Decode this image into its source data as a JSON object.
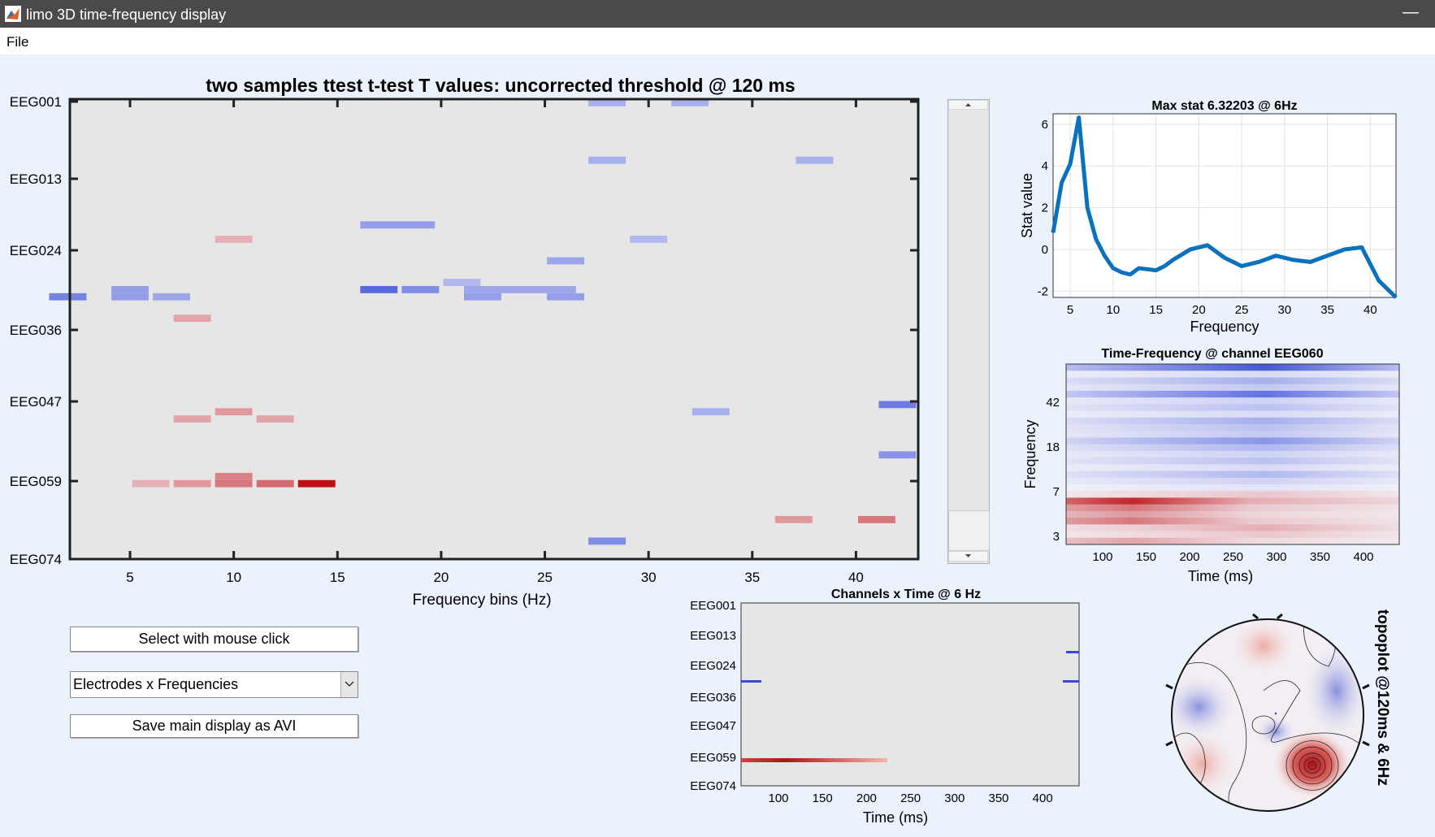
{
  "window": {
    "title": "limo 3D time-frequency display"
  },
  "menu": {
    "file": "File"
  },
  "main_plot": {
    "title": "two samples ttest t-test T values: uncorrected threshold @ 120 ms",
    "xlabel": "Frequency bins (Hz)",
    "y_ticks": [
      "EEG001",
      "EEG013",
      "EEG024",
      "EEG036",
      "EEG047",
      "EEG059",
      "EEG074"
    ],
    "x_ticks": [
      "5",
      "10",
      "15",
      "20",
      "25",
      "30",
      "35",
      "40"
    ]
  },
  "controls": {
    "select_button": "Select with mouse click",
    "dropdown_value": "Electrodes x Frequencies",
    "save_button": "Save main display as AVI"
  },
  "max_stat_plot": {
    "title": "Max stat 6.32203 @ 6Hz",
    "xlabel": "Frequency",
    "ylabel": "Stat value"
  },
  "tf_plot": {
    "title": "Time-Frequency @ channel EEG060",
    "xlabel": "Time (ms)",
    "ylabel": "Frequency",
    "y_ticks": [
      "42",
      "18",
      "7",
      "3"
    ],
    "x_ticks": [
      "100",
      "150",
      "200",
      "250",
      "300",
      "350",
      "400"
    ]
  },
  "channels_time_plot": {
    "title": "Channels x Time @ 6 Hz",
    "xlabel": "Time (ms)",
    "y_ticks": [
      "EEG001",
      "EEG013",
      "EEG024",
      "EEG036",
      "EEG047",
      "EEG059",
      "EEG074"
    ],
    "x_ticks": [
      "100",
      "150",
      "200",
      "250",
      "300",
      "350",
      "400"
    ]
  },
  "topoplot": {
    "label": "topoplot @120ms & 6Hz"
  },
  "colors": {
    "accent_line": "#0a72bd",
    "negative": "#4a55d8",
    "positive": "#c0141a",
    "plot_bg": "#e6e6e6"
  },
  "chart_data": [
    {
      "type": "heatmap",
      "title": "two samples ttest t-test T values: uncorrected threshold @ 120 ms",
      "xlabel": "Frequency bins (Hz)",
      "ylabel": "",
      "y_categories": [
        "EEG001",
        "EEG013",
        "EEG024",
        "EEG036",
        "EEG047",
        "EEG059",
        "EEG074"
      ],
      "cells": [
        {
          "ch": 1,
          "f": 28,
          "w": 1,
          "v": -0.4
        },
        {
          "ch": 1,
          "f": 32,
          "w": 1,
          "v": -0.4
        },
        {
          "ch": 9,
          "f": 28,
          "w": 1,
          "v": -0.4
        },
        {
          "ch": 9,
          "f": 38,
          "w": 1,
          "v": -0.4
        },
        {
          "ch": 18,
          "f": 17,
          "w": 2,
          "v": -0.5
        },
        {
          "ch": 20,
          "f": 10,
          "w": 1,
          "v": 0.3
        },
        {
          "ch": 20,
          "f": 30,
          "w": 1,
          "v": -0.35
        },
        {
          "ch": 23,
          "f": 26,
          "w": 1,
          "v": -0.45
        },
        {
          "ch": 26,
          "f": 21,
          "w": 1,
          "v": -0.35
        },
        {
          "ch": 27,
          "f": 5,
          "w": 1,
          "v": -0.5
        },
        {
          "ch": 28,
          "f": 2,
          "w": 1,
          "v": -0.65
        },
        {
          "ch": 28,
          "f": 5,
          "w": 1,
          "v": -0.5
        },
        {
          "ch": 28,
          "f": 7,
          "w": 1,
          "v": -0.45
        },
        {
          "ch": 27,
          "f": 17,
          "w": 1,
          "v": -0.8
        },
        {
          "ch": 27,
          "f": 19,
          "w": 1,
          "v": -0.6
        },
        {
          "ch": 27,
          "f": 22,
          "w": 3,
          "v": -0.45
        },
        {
          "ch": 28,
          "f": 22,
          "w": 1,
          "v": -0.5
        },
        {
          "ch": 28,
          "f": 26,
          "w": 1,
          "v": -0.5
        },
        {
          "ch": 31,
          "f": 8,
          "w": 1,
          "v": 0.35
        },
        {
          "ch": 44,
          "f": 33,
          "w": 1,
          "v": -0.4
        },
        {
          "ch": 43,
          "f": 42,
          "w": 1,
          "v": -0.7
        },
        {
          "ch": 45,
          "f": 8,
          "w": 1,
          "v": 0.35
        },
        {
          "ch": 44,
          "f": 10,
          "w": 1,
          "v": 0.4
        },
        {
          "ch": 45,
          "f": 12,
          "w": 1,
          "v": 0.35
        },
        {
          "ch": 50,
          "f": 42,
          "w": 1,
          "v": -0.55
        },
        {
          "ch": 53,
          "f": 10,
          "w": 1,
          "v": 0.5
        },
        {
          "ch": 54,
          "f": 6,
          "w": 1,
          "v": 0.3
        },
        {
          "ch": 54,
          "f": 8,
          "w": 1,
          "v": 0.4
        },
        {
          "ch": 54,
          "f": 10,
          "w": 1,
          "v": 0.55
        },
        {
          "ch": 54,
          "f": 12,
          "w": 1,
          "v": 0.6
        },
        {
          "ch": 54,
          "f": 14,
          "w": 1,
          "v": 1.0
        },
        {
          "ch": 59,
          "f": 37,
          "w": 1,
          "v": 0.4
        },
        {
          "ch": 59,
          "f": 41,
          "w": 1,
          "v": 0.55
        },
        {
          "ch": 62,
          "f": 28,
          "w": 1,
          "v": -0.6
        }
      ]
    },
    {
      "type": "line",
      "title": "Max stat 6.32203 @ 6Hz",
      "xlabel": "Frequency",
      "ylabel": "Stat value",
      "x": [
        3,
        4,
        5,
        6,
        7,
        8,
        9,
        10,
        11,
        12,
        13,
        14,
        15,
        16,
        17,
        19,
        21,
        23,
        25,
        27,
        29,
        31,
        33,
        35,
        37,
        39,
        41,
        43
      ],
      "series": [
        {
          "values": [
            0.8,
            3.2,
            4.1,
            6.32,
            2.0,
            0.5,
            -0.3,
            -0.9,
            -1.1,
            -1.2,
            -0.9,
            -0.95,
            -1.0,
            -0.8,
            -0.5,
            0.0,
            0.2,
            -0.4,
            -0.8,
            -0.6,
            -0.3,
            -0.5,
            -0.6,
            -0.3,
            0.0,
            0.1,
            -1.5,
            -2.3
          ]
        }
      ],
      "xlim": [
        3,
        43
      ],
      "ylim": [
        -2.3,
        6.5
      ],
      "x_ticks": [
        5,
        10,
        15,
        20,
        25,
        30,
        35,
        40
      ],
      "y_ticks": [
        -2,
        0,
        2,
        4,
        6
      ],
      "grid": true
    }
  ]
}
